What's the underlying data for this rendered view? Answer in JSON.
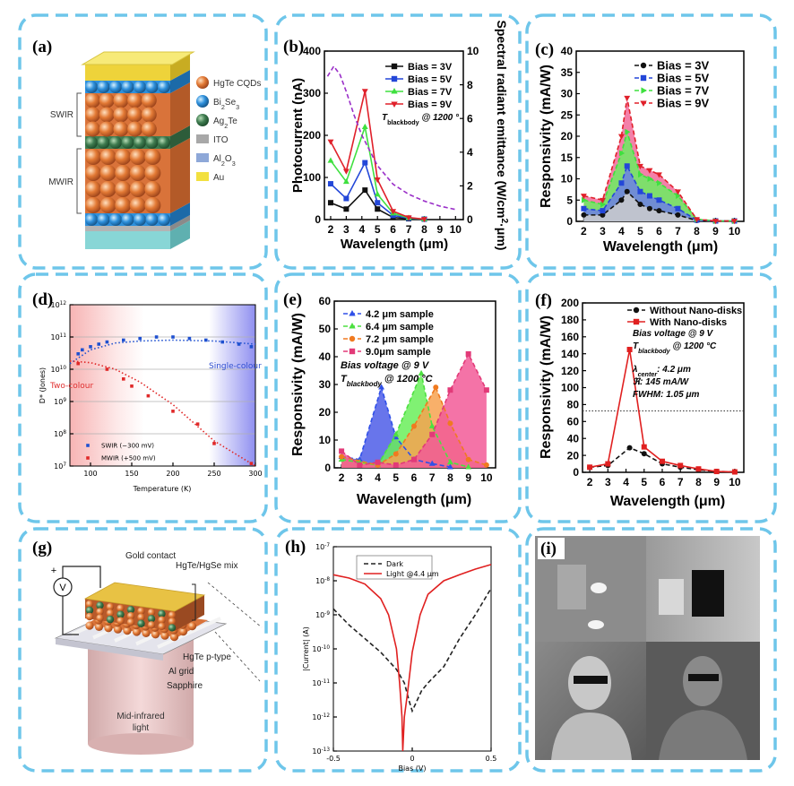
{
  "diagram_a": {
    "label": "(a)",
    "stack": [
      "SWIR",
      "MWIR"
    ],
    "legend": [
      "HgTe CQDs",
      [
        {
          "text": "Bi"
        },
        {
          "text": "2",
          "style": "sub"
        },
        {
          "text": "Se"
        },
        {
          "text": "3",
          "style": "sub"
        }
      ],
      [
        {
          "text": "Ag"
        },
        {
          "text": "2",
          "style": "sub"
        },
        {
          "text": "Te"
        }
      ],
      "ITO",
      [
        {
          "text": "Al"
        },
        {
          "text": "2",
          "style": "sub"
        },
        {
          "text": "O"
        },
        {
          "text": "3",
          "style": "sub"
        }
      ],
      "Au"
    ]
  },
  "diagram_g": {
    "label": "(g)",
    "meter": "V",
    "polarity": "+",
    "callouts": [
      "Gold contact",
      "HgTe/HgSe mix",
      "HgTe p-type",
      "Al grid",
      "Sapphire"
    ],
    "source": [
      "Mid-infrared",
      "light"
    ]
  },
  "image_i": {
    "label": "(i)"
  },
  "chart_data": [
    {
      "label": "(b)",
      "type": "line",
      "xlabel": "Wavelength (μm)",
      "ylabel": "Photocurrent (nA)",
      "y2label": [
        {
          "text": "Spectral radiant emittance (W/cm"
        },
        {
          "text": "2",
          "style": "sup"
        },
        {
          "text": "·μm)"
        }
      ],
      "xlim": [
        1.6,
        10.5
      ],
      "xticks": [
        2,
        3,
        4,
        5,
        6,
        7,
        8,
        9,
        10
      ],
      "ylim": [
        0,
        400
      ],
      "yticks": [
        0,
        100,
        200,
        300,
        400
      ],
      "y2lim": [
        0,
        10
      ],
      "y2ticks": [
        0,
        2,
        4,
        6,
        8,
        10
      ],
      "annotations": [
        [
          {
            "text": "T",
            "style": "italic"
          },
          {
            "text": "blackbody",
            "style": "sub"
          },
          {
            "text": " @ 1200 °",
            "style": "italic"
          }
        ]
      ],
      "series": [
        {
          "name": "Bias = 3V",
          "color": "#111111",
          "marker": "square",
          "x": [
            2,
            3,
            4.2,
            5,
            6,
            7,
            8
          ],
          "values": [
            40,
            25,
            70,
            25,
            5,
            2,
            1
          ]
        },
        {
          "name": "Bias = 5V",
          "color": "#2347d8",
          "marker": "square",
          "x": [
            2,
            3,
            4.2,
            5,
            6,
            7,
            8
          ],
          "values": [
            85,
            50,
            135,
            40,
            10,
            3,
            1
          ]
        },
        {
          "name": "Bias = 7V",
          "color": "#3fe03f",
          "marker": "triangle",
          "x": [
            2,
            3,
            4.2,
            5,
            6,
            7,
            8
          ],
          "values": [
            140,
            90,
            220,
            60,
            15,
            4,
            1
          ]
        },
        {
          "name": "Bias = 9V",
          "color": "#e0202a",
          "marker": "triangle-down",
          "x": [
            2,
            3,
            4.2,
            5,
            6,
            7,
            8
          ],
          "values": [
            185,
            115,
            305,
            95,
            20,
            5,
            1
          ]
        },
        {
          "color": "#9a2fc8",
          "style": "dashed",
          "axis": "y2",
          "x": [
            1.8,
            2.2,
            2.6,
            3,
            3.5,
            4,
            5,
            6,
            7,
            8,
            9,
            10
          ],
          "values": [
            8.5,
            9.1,
            8.6,
            7.6,
            6.2,
            5,
            3.2,
            2.1,
            1.5,
            1.1,
            0.8,
            0.6
          ]
        }
      ]
    },
    {
      "label": "(c)",
      "type": "line",
      "xlabel": "Wavelength (μm)",
      "ylabel": "Responsivity (mA/W)",
      "xlim": [
        1.6,
        10.5
      ],
      "xticks": [
        2,
        3,
        4,
        5,
        6,
        7,
        8,
        9,
        10
      ],
      "ylim": [
        0,
        40
      ],
      "yticks": [
        0,
        5,
        10,
        15,
        20,
        25,
        30,
        35,
        40
      ],
      "series": [
        {
          "name": "Bias = 3V",
          "color": "#111111",
          "fill": "#cdcdcd",
          "style": "dashed",
          "marker": "circle",
          "x": [
            2,
            3,
            4,
            4.3,
            5,
            5.5,
            6,
            7,
            8,
            9,
            10
          ],
          "values": [
            1.5,
            1.5,
            5,
            7,
            4,
            3,
            2.5,
            1.5,
            0.2,
            0.1,
            0.1
          ]
        },
        {
          "name": "Bias = 5V",
          "color": "#2347d8",
          "fill": "#6d7fe6",
          "style": "dashed",
          "marker": "square",
          "x": [
            2,
            3,
            4,
            4.3,
            5,
            5.5,
            6,
            7,
            8,
            9,
            10
          ],
          "values": [
            3,
            2.5,
            9,
            13,
            7,
            6,
            5,
            3,
            0.3,
            0.1,
            0.1
          ]
        },
        {
          "name": "Bias = 7V",
          "color": "#3fe03f",
          "fill": "#6aee62",
          "style": "dashed",
          "marker": "triangle-right",
          "x": [
            2,
            3,
            4,
            4.3,
            5,
            5.5,
            6,
            7,
            8,
            9,
            10
          ],
          "values": [
            5,
            4,
            16,
            21,
            11,
            10,
            9,
            6,
            0.5,
            0.1,
            0.1
          ]
        },
        {
          "name": "Bias = 9V",
          "color": "#e0202a",
          "fill": "#f26a9a",
          "style": "dashed",
          "marker": "triangle-down",
          "x": [
            2,
            3,
            4,
            4.3,
            5,
            5.5,
            6,
            7,
            8,
            9,
            10
          ],
          "values": [
            6,
            5,
            20,
            29,
            13,
            12,
            11,
            7,
            0.5,
            0.1,
            0.1
          ]
        }
      ]
    },
    {
      "label": "(d)",
      "type": "scatter",
      "xlabel": "Temperature (K)",
      "ylabel": "D* (Jones)",
      "ylog": true,
      "grid": true,
      "xlim": [
        75,
        300
      ],
      "xticks": [
        100,
        150,
        200,
        250,
        300
      ],
      "ylim": [
        10000000.0,
        1000000000000.0
      ],
      "yticks": [
        {
          "value": 10000000.0,
          "label": "10",
          "sup": "7"
        },
        {
          "value": 100000000.0,
          "label": "10",
          "sup": "8"
        },
        {
          "value": 1000000000.0,
          "label": "10",
          "sup": "9"
        },
        {
          "value": 10000000000.0,
          "label": "10",
          "sup": "10"
        },
        {
          "value": 100000000000.0,
          "label": "10",
          "sup": "11"
        },
        {
          "value": 1000000000000.0,
          "label": "10",
          "sup": "12"
        }
      ],
      "annotations": [
        "Two-colour",
        "Single-colour"
      ],
      "annotation_colors": [
        "#e03030",
        "#3050d0"
      ],
      "series": [
        {
          "name": "SWIR (−300 mV)",
          "color": "#1e50d0",
          "marker": "square",
          "x": [
            85,
            90,
            100,
            110,
            120,
            140,
            160,
            180,
            200,
            220,
            240,
            260,
            280,
            295
          ],
          "values": [
            30000000000.0,
            40000000000.0,
            50000000000.0,
            60000000000.0,
            70000000000.0,
            80000000000.0,
            90000000000.0,
            100000000000.0,
            100000000000.0,
            90000000000.0,
            80000000000.0,
            70000000000.0,
            60000000000.0,
            50000000000.0
          ]
        },
        {
          "name": "MWIR (+500 mV)",
          "color": "#e02828",
          "marker": "square",
          "x": [
            85,
            120,
            140,
            150,
            170,
            200,
            230,
            250,
            295
          ],
          "values": [
            15000000000.0,
            10000000000.0,
            5000000000.0,
            3000000000.0,
            1500000000.0,
            500000000.0,
            200000000.0,
            50000000.0,
            12000000.0
          ]
        },
        {
          "color": "#1e50d0",
          "style": "dotted",
          "x": [
            75,
            100,
            130,
            160,
            200,
            250,
            300
          ],
          "values": [
            15000000000.0,
            40000000000.0,
            65000000000.0,
            75000000000.0,
            80000000000.0,
            75000000000.0,
            60000000000.0
          ]
        },
        {
          "color": "#e02828",
          "style": "dotted",
          "x": [
            75,
            100,
            130,
            160,
            200,
            250,
            300
          ],
          "values": [
            18000000000.0,
            16000000000.0,
            10000000000.0,
            4000000000.0,
            800000000.0,
            60000000.0,
            10000000.0
          ]
        }
      ]
    },
    {
      "label": "(e)",
      "type": "line",
      "xlabel": "Wavelength (μm)",
      "ylabel": "Responsivity (mA/W)",
      "xlim": [
        1.6,
        10.5
      ],
      "xticks": [
        2,
        3,
        4,
        5,
        6,
        7,
        8,
        9,
        10
      ],
      "ylim": [
        0,
        60
      ],
      "yticks": [
        0,
        10,
        20,
        30,
        40,
        50,
        60
      ],
      "annotations": [
        [
          {
            "text": "Bias voltage @ 9 V"
          }
        ],
        [
          {
            "text": "T"
          },
          {
            "text": "blackbody",
            "style": "sub"
          },
          {
            "text": " @ 1200 °C"
          }
        ]
      ],
      "series": [
        {
          "name": "4.2 μm sample",
          "color": "#3050e8",
          "fill": "#4d5de8",
          "style": "dashed",
          "marker": "triangle",
          "x": [
            2,
            3,
            4.2,
            5,
            6,
            7,
            8
          ],
          "values": [
            4,
            3,
            29,
            11,
            3,
            1.5,
            0.3
          ]
        },
        {
          "name": "6.4 μm sample",
          "color": "#4de040",
          "fill": "#6aee5a",
          "style": "dashed",
          "marker": "triangle",
          "x": [
            2,
            3,
            4,
            5,
            6.4,
            7,
            8,
            9
          ],
          "values": [
            3,
            2,
            1,
            12,
            34,
            15,
            2,
            0.3
          ]
        },
        {
          "name": "7.2 μm sample",
          "color": "#f07a20",
          "fill": "#f7a250",
          "style": "dashed",
          "marker": "circle",
          "x": [
            2,
            4,
            5,
            6,
            7.2,
            8,
            9,
            10
          ],
          "values": [
            4,
            1,
            5,
            15,
            29,
            16,
            3,
            1
          ]
        },
        {
          "name": "9.0μm sample",
          "color": "#e23a78",
          "fill": "#f25a98",
          "style": "dashed",
          "marker": "square",
          "x": [
            2,
            3,
            4,
            5,
            6,
            7,
            8,
            9,
            10
          ],
          "values": [
            6,
            1,
            2,
            1,
            3,
            12,
            28,
            41,
            28
          ]
        }
      ]
    },
    {
      "label": "(f)",
      "type": "line",
      "xlabel": "Wavelength (μm)",
      "ylabel": "Responsivity (mA/W)",
      "xlim": [
        1.6,
        10.5
      ],
      "xticks": [
        2,
        3,
        4,
        5,
        6,
        7,
        8,
        9,
        10
      ],
      "ylim": [
        0,
        200
      ],
      "yticks": [
        0,
        20,
        40,
        60,
        80,
        100,
        120,
        140,
        160,
        180,
        200
      ],
      "hline": 72.5,
      "annotations": [
        [
          {
            "text": "Bias voltage @ 9 V"
          }
        ],
        [
          {
            "text": "T"
          },
          {
            "text": "blackbody",
            "style": "sub"
          },
          {
            "text": " @ 1200 °C"
          }
        ],
        [
          {
            "text": "λ"
          },
          {
            "text": "center",
            "style": "sub"
          },
          {
            "text": ": 4.2 μm"
          }
        ],
        [
          {
            "text": "ℜ: 145 mA/W"
          }
        ],
        [
          {
            "text": "FWHM: 1.05 μm"
          }
        ]
      ],
      "series": [
        {
          "name": "Without Nano-disks",
          "color": "#111111",
          "style": "dashed",
          "marker": "circle",
          "x": [
            2,
            3,
            4.2,
            5,
            6,
            7,
            8,
            9,
            10
          ],
          "values": [
            6,
            8,
            29,
            22,
            10,
            6,
            3,
            1,
            0.5
          ]
        },
        {
          "name": "With Nano-disks",
          "color": "#e02020",
          "style": "solid",
          "marker": "square",
          "x": [
            2,
            3,
            4.2,
            5,
            6,
            7,
            8,
            9,
            10
          ],
          "values": [
            6,
            10,
            145,
            30,
            13,
            8,
            4,
            1,
            0.5
          ]
        }
      ]
    },
    {
      "label": "(h)",
      "type": "line",
      "xlabel": "Bias (V)",
      "ylabel": "|Current| (A)",
      "ylog": true,
      "xlim": [
        -0.5,
        0.5
      ],
      "xticks": [
        -0.5,
        0,
        0.5
      ],
      "ylim": [
        1e-13,
        1e-07
      ],
      "yticks": [
        {
          "value": 1e-13,
          "label": "10",
          "sup": "-13"
        },
        {
          "value": 1e-12,
          "label": "10",
          "sup": "-12"
        },
        {
          "value": 1e-11,
          "label": "10",
          "sup": "-11"
        },
        {
          "value": 1e-10,
          "label": "10",
          "sup": "-10"
        },
        {
          "value": 1e-09,
          "label": "10",
          "sup": "-9"
        },
        {
          "value": 1e-08,
          "label": "10",
          "sup": "-8"
        },
        {
          "value": 1e-07,
          "label": "10",
          "sup": "-7"
        }
      ],
      "series": [
        {
          "name": "Dark",
          "color": "#222222",
          "style": "dashed",
          "x": [
            -0.5,
            -0.4,
            -0.3,
            -0.2,
            -0.1,
            -0.05,
            -0.02,
            0,
            0.03,
            0.06,
            0.1,
            0.2,
            0.3,
            0.4,
            0.5
          ],
          "values": [
            1.5e-09,
            5e-10,
            2e-10,
            8e-11,
            2.5e-11,
            1e-11,
            3e-12,
            1.5e-12,
            3e-12,
            6e-12,
            1e-11,
            3e-11,
            2e-10,
            1e-09,
            6e-09
          ]
        },
        {
          "name": "Light @4.4 μm",
          "color": "#e02020",
          "style": "solid",
          "x": [
            -0.5,
            -0.4,
            -0.3,
            -0.2,
            -0.15,
            -0.1,
            -0.08,
            -0.065,
            -0.06,
            -0.05,
            -0.03,
            0,
            0.05,
            0.1,
            0.2,
            0.3,
            0.4,
            0.5
          ],
          "values": [
            1.5e-08,
            1.2e-08,
            8e-09,
            3e-09,
            1e-09,
            1e-10,
            1e-11,
            1e-12,
            1e-13,
            1e-12,
            5e-12,
            8e-11,
            1e-09,
            4e-09,
            1e-08,
            1.5e-08,
            2.2e-08,
            3e-08
          ]
        }
      ]
    }
  ]
}
